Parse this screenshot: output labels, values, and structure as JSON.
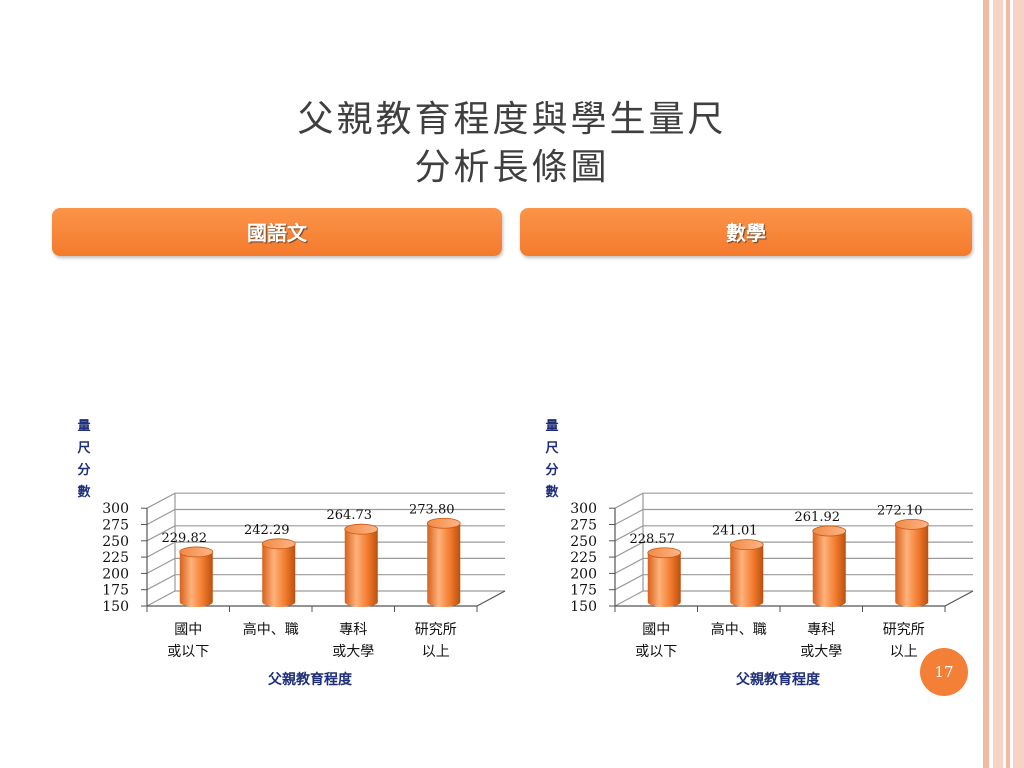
{
  "slide": {
    "title_line1": "父親教育程度與學生量尺",
    "title_line2": "分析長條圖",
    "page_number": "17"
  },
  "colors": {
    "accent": "#f47f36",
    "bar_light": "#ffb07a",
    "bar_dark": "#d45f12",
    "axis_label": "#1f2f7a",
    "title_text": "#3f3f3f"
  },
  "chart_data": [
    {
      "type": "bar",
      "title": "國語文",
      "categories": [
        "國中\n或以下",
        "高中、職",
        "專科\n或大學",
        "研究所\n以上"
      ],
      "values": [
        229.82,
        242.29,
        264.73,
        273.8
      ],
      "value_labels": [
        "229.82",
        "242.29",
        "264.73",
        "273.80"
      ],
      "xlabel": "父親教育程度",
      "ylabel": "量尺分數",
      "ylim": [
        150,
        300
      ],
      "yticks": [
        150,
        175,
        200,
        225,
        250,
        275,
        300
      ],
      "grid": true,
      "legend": "none"
    },
    {
      "type": "bar",
      "title": "數學",
      "categories": [
        "國中\n或以下",
        "高中、職",
        "專科\n或大學",
        "研究所\n以上"
      ],
      "values": [
        228.57,
        241.01,
        261.92,
        272.1
      ],
      "value_labels": [
        "228.57",
        "241.01",
        "261.92",
        "272.10"
      ],
      "xlabel": "父親教育程度",
      "ylabel": "量尺分數",
      "ylim": [
        150,
        300
      ],
      "yticks": [
        150,
        175,
        200,
        225,
        250,
        275,
        300
      ],
      "grid": true,
      "legend": "none"
    }
  ]
}
